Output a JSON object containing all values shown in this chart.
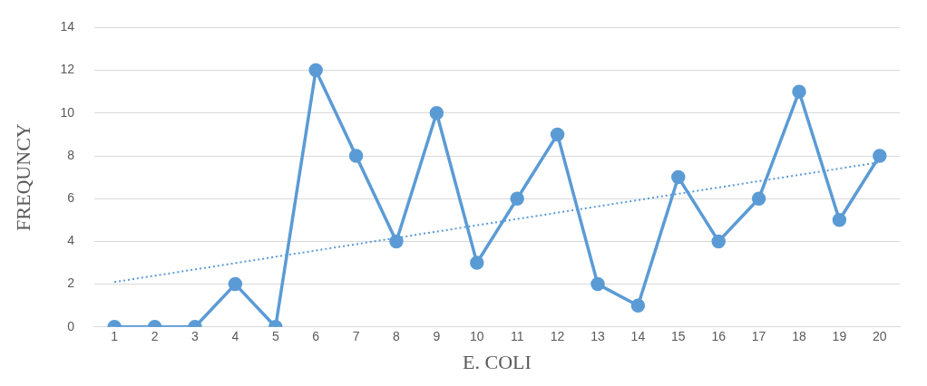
{
  "chart_data": {
    "type": "line",
    "xlabel": "E. COLI",
    "ylabel": "FREQUNCY",
    "x": [
      1,
      2,
      3,
      4,
      5,
      6,
      7,
      8,
      9,
      10,
      11,
      12,
      13,
      14,
      15,
      16,
      17,
      18,
      19,
      20
    ],
    "xlim": [
      0.5,
      20.5
    ],
    "xticks": [
      1,
      2,
      3,
      4,
      5,
      6,
      7,
      8,
      9,
      10,
      11,
      12,
      13,
      14,
      15,
      16,
      17,
      18,
      19,
      20
    ],
    "ylim": [
      0,
      14
    ],
    "yticks": [
      0,
      2,
      4,
      6,
      8,
      10,
      12,
      14
    ],
    "grid": "y",
    "legend": false,
    "series": [
      {
        "color": "#5b9bd5",
        "marker": "circle",
        "line_style": "solid",
        "values": [
          0,
          0,
          0,
          2,
          0,
          12,
          8,
          4,
          10,
          3,
          6,
          9,
          2,
          1,
          7,
          4,
          6,
          11,
          5,
          8
        ]
      },
      {
        "type": "line",
        "color": "#5b9bd5",
        "marker": "none",
        "line_style": "dotted",
        "x": [
          1,
          20
        ],
        "values": [
          2.1,
          7.7
        ]
      }
    ]
  }
}
